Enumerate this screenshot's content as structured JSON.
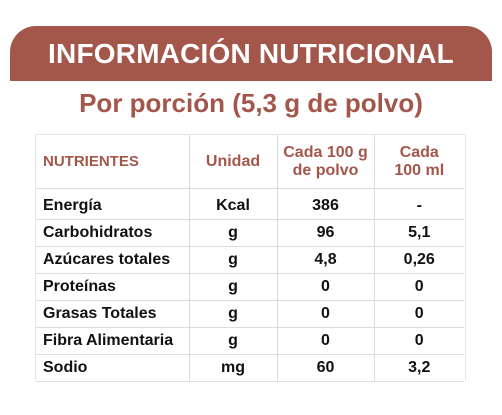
{
  "header": {
    "title": "INFORMACIÓN NUTRICIONAL",
    "subtitle": "Por porción (5,3 g de polvo)"
  },
  "table": {
    "columns": [
      "NUTRIENTES",
      "Unidad",
      [
        "Cada 100 g",
        "de polvo"
      ],
      [
        "Cada",
        "100 ml"
      ]
    ],
    "rows": [
      {
        "nutrient": "Energía",
        "unit": "Kcal",
        "per100g": "386",
        "per100ml": "-"
      },
      {
        "nutrient": "Carbohidratos",
        "unit": "g",
        "per100g": "96",
        "per100ml": "5,1"
      },
      {
        "nutrient": "Azúcares totales",
        "unit": "g",
        "per100g": "4,8",
        "per100ml": "0,26"
      },
      {
        "nutrient": "Proteínas",
        "unit": "g",
        "per100g": "0",
        "per100ml": "0"
      },
      {
        "nutrient": "Grasas Totales",
        "unit": "g",
        "per100g": "0",
        "per100ml": "0"
      },
      {
        "nutrient": "Fibra Alimentaria",
        "unit": "g",
        "per100g": "0",
        "per100ml": "0"
      },
      {
        "nutrient": "Sodio",
        "unit": "mg",
        "per100g": "60",
        "per100ml": "3,2"
      }
    ]
  },
  "colors": {
    "accent": "#a3574b",
    "text": "#111111",
    "grid": "#dcdcdc"
  }
}
